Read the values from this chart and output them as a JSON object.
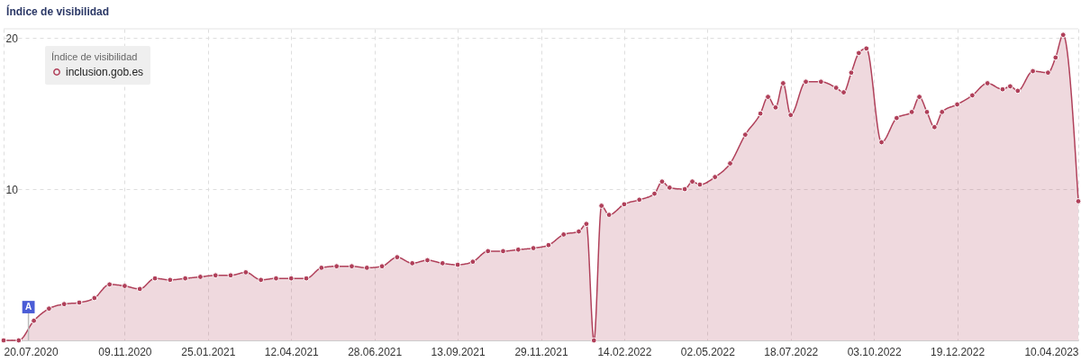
{
  "chart_data": {
    "type": "area",
    "title": "Índice de visibilidad",
    "legend_title": "Índice de visibilidad",
    "x": [
      "2020-07-20",
      "2020-08-03",
      "2020-08-17",
      "2020-08-31",
      "2020-09-14",
      "2020-09-28",
      "2020-10-12",
      "2020-10-26",
      "2020-11-09",
      "2020-11-23",
      "2020-12-07",
      "2020-12-21",
      "2021-01-04",
      "2021-01-18",
      "2021-02-01",
      "2021-02-15",
      "2021-03-01",
      "2021-03-15",
      "2021-03-29",
      "2021-04-12",
      "2021-04-26",
      "2021-05-10",
      "2021-05-24",
      "2021-06-07",
      "2021-06-21",
      "2021-07-05",
      "2021-07-19",
      "2021-08-02",
      "2021-08-16",
      "2021-08-30",
      "2021-09-13",
      "2021-09-27",
      "2021-10-11",
      "2021-10-25",
      "2021-11-08",
      "2021-11-22",
      "2021-12-06",
      "2021-12-20",
      "2022-01-03",
      "2022-01-10",
      "2022-01-17",
      "2022-01-24",
      "2022-01-31",
      "2022-02-14",
      "2022-02-28",
      "2022-03-14",
      "2022-03-21",
      "2022-03-28",
      "2022-04-11",
      "2022-04-18",
      "2022-04-25",
      "2022-05-09",
      "2022-05-23",
      "2022-06-06",
      "2022-06-20",
      "2022-06-27",
      "2022-07-04",
      "2022-07-11",
      "2022-07-18",
      "2022-08-01",
      "2022-08-15",
      "2022-08-29",
      "2022-09-05",
      "2022-09-12",
      "2022-09-19",
      "2022-09-26",
      "2022-10-10",
      "2022-10-24",
      "2022-11-07",
      "2022-11-14",
      "2022-11-21",
      "2022-11-28",
      "2022-12-05",
      "2022-12-19",
      "2023-01-02",
      "2023-01-16",
      "2023-01-30",
      "2023-02-06",
      "2023-02-13",
      "2023-02-27",
      "2023-03-13",
      "2023-03-20",
      "2023-03-27",
      "2023-04-10"
    ],
    "series": [
      {
        "name": "inclusion.gob.es",
        "color": "#b0405a",
        "values": [
          0,
          0,
          1.3,
          2.1,
          2.4,
          2.5,
          2.8,
          3.7,
          3.6,
          3.4,
          4.1,
          4.0,
          4.1,
          4.2,
          4.3,
          4.3,
          4.5,
          4.0,
          4.1,
          4.1,
          4.1,
          4.8,
          4.9,
          4.9,
          4.8,
          4.9,
          5.5,
          5.1,
          5.3,
          5.1,
          5.0,
          5.2,
          5.9,
          5.9,
          6.0,
          6.1,
          6.3,
          7.0,
          7.2,
          7.7,
          0,
          8.9,
          8.3,
          9.0,
          9.3,
          9.7,
          10.5,
          10.1,
          10.0,
          10.5,
          10.3,
          10.8,
          11.7,
          13.6,
          15.0,
          16.1,
          15.4,
          17.0,
          14.9,
          17.1,
          17.1,
          16.7,
          16.4,
          17.7,
          19.0,
          19.3,
          13.1,
          14.7,
          15.1,
          16.1,
          15.1,
          14.1,
          15.1,
          15.6,
          16.2,
          17.0,
          16.6,
          16.8,
          16.5,
          17.8,
          17.7,
          18.7,
          20.2,
          9.2
        ]
      }
    ],
    "xlim": [
      "2020-07-20",
      "2023-04-10"
    ],
    "xticks": [
      {
        "value": "2020-07-20",
        "label": "20.07.2020"
      },
      {
        "value": "2020-11-09",
        "label": "09.11.2020"
      },
      {
        "value": "2021-01-25",
        "label": "25.01.2021"
      },
      {
        "value": "2021-04-12",
        "label": "12.04.2021"
      },
      {
        "value": "2021-06-28",
        "label": "28.06.2021"
      },
      {
        "value": "2021-09-13",
        "label": "13.09.2021"
      },
      {
        "value": "2021-11-29",
        "label": "29.11.2021"
      },
      {
        "value": "2022-02-14",
        "label": "14.02.2022"
      },
      {
        "value": "2022-05-02",
        "label": "02.05.2022"
      },
      {
        "value": "2022-07-18",
        "label": "18.07.2022"
      },
      {
        "value": "2022-10-03",
        "label": "03.10.2022"
      },
      {
        "value": "2022-12-19",
        "label": "19.12.2022"
      },
      {
        "value": "2023-04-10",
        "label": "10.04.2023"
      }
    ],
    "ylim": [
      0,
      20.6
    ],
    "yticks": [
      10,
      20
    ],
    "grid": true,
    "legend": "top left",
    "marker": "circle",
    "annotations": [
      {
        "text": "A",
        "x": "2020-08-12",
        "y": 2.2
      }
    ]
  }
}
